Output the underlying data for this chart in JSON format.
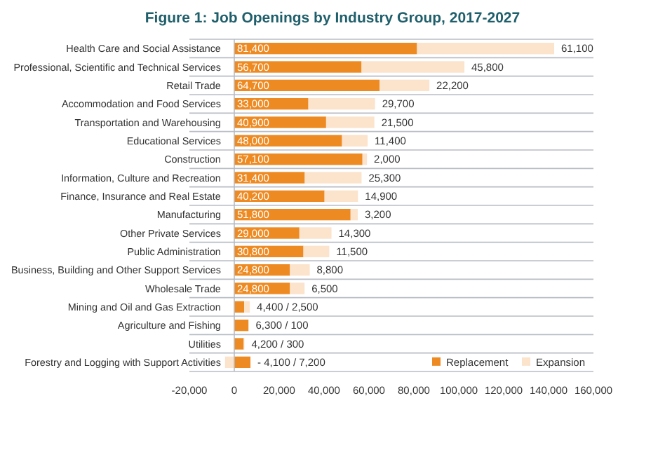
{
  "chart_data": {
    "type": "bar",
    "orientation": "horizontal",
    "stacked": true,
    "title": "Figure 1: Job Openings by Industry Group, 2017-2027",
    "categories": [
      "Health Care and Social Assistance",
      "Professional, Scientific and Technical Services",
      "Retail Trade",
      "Accommodation and Food Services",
      "Transportation and Warehousing",
      "Educational Services",
      "Construction",
      "Information, Culture and Recreation",
      "Finance, Insurance and Real Estate",
      "Manufacturing",
      "Other Private Services",
      "Public Administration",
      "Business, Building and Other Support Services",
      "Wholesale Trade",
      "Mining and Oil and Gas Extraction",
      "Agriculture and Fishing",
      "Utilities",
      "Forestry and Logging with Support Activities"
    ],
    "series": [
      {
        "name": "Replacement",
        "color": "#ee8a22",
        "values": [
          81400,
          56700,
          64700,
          33000,
          40900,
          48000,
          57100,
          31400,
          40200,
          51800,
          29000,
          30800,
          24800,
          24800,
          4400,
          6300,
          4200,
          7200
        ],
        "value_labels": [
          "81,400",
          "56,700",
          "64,700",
          "33,000",
          "40,900",
          "48,000",
          "57,100",
          "31,400",
          "40,200",
          "51,800",
          "29,000",
          "30,800",
          "24,800",
          "24,800",
          null,
          null,
          null,
          null
        ]
      },
      {
        "name": "Expansion",
        "color": "#fbe3cc",
        "values": [
          61100,
          45800,
          22200,
          29700,
          21500,
          11400,
          2000,
          25300,
          14900,
          3200,
          14300,
          11500,
          8800,
          6500,
          2500,
          100,
          300,
          -4100
        ],
        "value_labels": [
          "61,100",
          "45,800",
          "22,200",
          "29,700",
          "21,500",
          "11,400",
          "2,000",
          "25,300",
          "14,900",
          "3,200",
          "14,300",
          "11,500",
          "8,800",
          "6,500",
          "4,400 / 2,500",
          "6,300 / 100",
          "4,200 / 300",
          "- 4,100 / 7,200"
        ]
      }
    ],
    "xlim": [
      -20000,
      160000
    ],
    "xticks": [
      {
        "value": -20000,
        "label": "-20,000"
      },
      {
        "value": 0,
        "label": "0"
      },
      {
        "value": 20000,
        "label": "20,000"
      },
      {
        "value": 40000,
        "label": "40,000"
      },
      {
        "value": 60000,
        "label": "60,000"
      },
      {
        "value": 80000,
        "label": "80,000"
      },
      {
        "value": 100000,
        "label": "100,000"
      },
      {
        "value": 120000,
        "label": "120,000"
      },
      {
        "value": 140000,
        "label": "140,000"
      },
      {
        "value": 160000,
        "label": "160,000"
      }
    ],
    "legend": "bottom right"
  }
}
